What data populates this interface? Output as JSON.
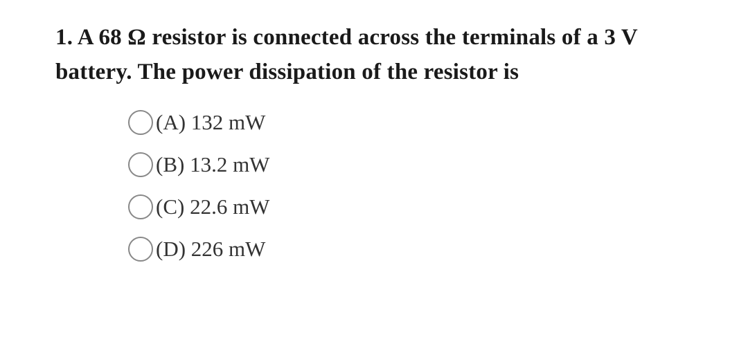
{
  "question": {
    "text": "1. A 68 Ω resistor is connected across the terminals of a 3 V battery. The power dissipation of the resistor is",
    "fontsize": 33,
    "fontweight": "bold",
    "color": "#1a1a1a"
  },
  "options": [
    {
      "id": "A",
      "label": "(A) 132 mW"
    },
    {
      "id": "B",
      "label": "(B) 13.2 mW"
    },
    {
      "id": "C",
      "label": "(C) 22.6 mW"
    },
    {
      "id": "D",
      "label": "(D) 226 mW"
    }
  ],
  "option_style": {
    "fontsize": 31,
    "color": "#333333",
    "radio_border_color": "#888888",
    "radio_size": 36
  },
  "background_color": "#ffffff"
}
